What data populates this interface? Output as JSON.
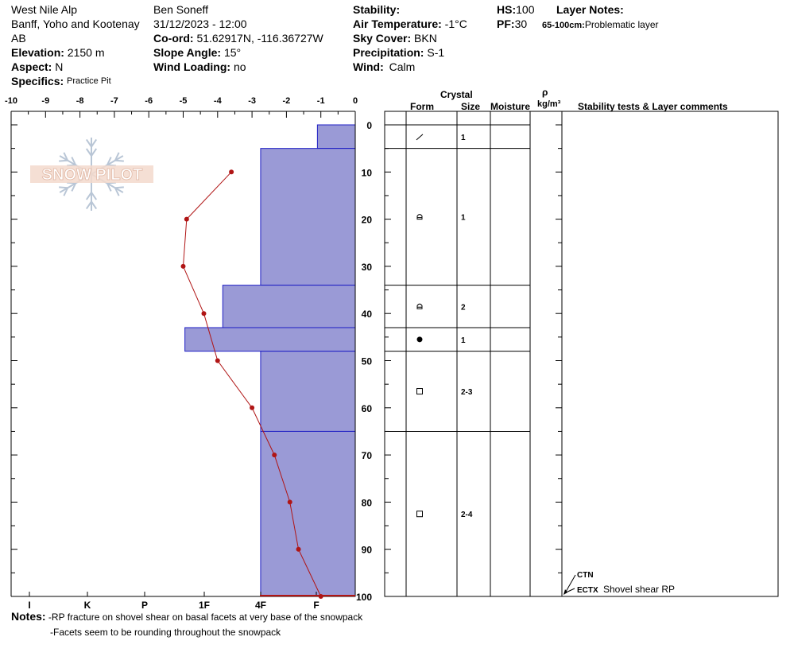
{
  "header": {
    "location": "West Nile Alp",
    "region": "Banff, Yoho and Kootenay",
    "province": "AB",
    "elevation_label": "Elevation:",
    "elevation_value": "2150 m",
    "aspect_label": "Aspect:",
    "aspect_value": "N",
    "specifics_label": "Specifics:",
    "specifics_value": "Practice Pit",
    "observer": "Ben Soneff",
    "datetime": "31/12/2023 - 12:00",
    "coord_label": "Co-ord:",
    "coord_value": "51.62917N, -116.36727W",
    "slope_label": "Slope Angle:",
    "slope_value": "15°",
    "wind_loading_label": "Wind Loading:",
    "wind_loading_value": "no",
    "stability_label": "Stability:",
    "stability_value": "",
    "air_temp_label": "Air Temperature:",
    "air_temp_value": "-1°C",
    "sky_label": "Sky Cover:",
    "sky_value": "BKN",
    "precip_label": "Precipitation:",
    "precip_value": "S-1",
    "wind_label": "Wind:",
    "wind_value": "Calm",
    "hs_label": "HS:",
    "hs_value": "100",
    "pf_label": "PF:",
    "pf_value": "30",
    "layer_notes_label": "Layer Notes:",
    "layer_note_range": "65-100cm:",
    "layer_note_text": "Problematic layer"
  },
  "logo": {
    "text": "SNOW PILOT"
  },
  "table_headers": {
    "crystal": "Crystal",
    "form": "Form",
    "size": "Size",
    "moisture": "Moisture",
    "rho": "ρ",
    "density_unit": "kg/m³",
    "comments": "Stability tests & Layer comments"
  },
  "layers": [
    {
      "top": 0,
      "bottom": 5,
      "form_icon": "decomposing-fragments-icon",
      "size": "1"
    },
    {
      "top": 5,
      "bottom": 34,
      "form_icon": "rounded-faceted-icon",
      "size": "1"
    },
    {
      "top": 34,
      "bottom": 43,
      "form_icon": "rounded-faceted-icon",
      "size": "2"
    },
    {
      "top": 43,
      "bottom": 48,
      "form_icon": "melt-forms-icon",
      "size": "1"
    },
    {
      "top": 48,
      "bottom": 65,
      "form_icon": "faceted-crystals-icon",
      "size": "2-3"
    },
    {
      "top": 65,
      "bottom": 100,
      "form_icon": "faceted-crystals-icon",
      "size": "2-4"
    }
  ],
  "stability_tests": [
    {
      "code": "CTN",
      "comment": ""
    },
    {
      "code": "ECTX",
      "comment": "Shovel shear RP"
    }
  ],
  "notes": {
    "label": "Notes:",
    "line1": "-RP fracture on shovel shear on basal facets at very base of the snowpack",
    "line2": "-Facets seem to be rounding throughout the snowpack"
  },
  "chart_data": {
    "type": "snow_profile",
    "temperature_axis": {
      "label": "",
      "ticks": [
        -10,
        -9,
        -8,
        -7,
        -6,
        -5,
        -4,
        -3,
        -2,
        -1,
        0
      ],
      "range": [
        -10,
        0
      ]
    },
    "depth_axis": {
      "ticks": [
        0,
        10,
        20,
        30,
        40,
        50,
        60,
        70,
        80,
        90,
        100
      ],
      "range": [
        0,
        100
      ]
    },
    "hardness_axis": {
      "ticks": [
        "I",
        "K",
        "P",
        "1F",
        "4F",
        "F"
      ]
    },
    "hardness_profile": [
      {
        "top": 0,
        "bottom": 5,
        "temp_equiv": -1.1
      },
      {
        "top": 5,
        "bottom": 34,
        "temp_equiv": -2.75
      },
      {
        "top": 34,
        "bottom": 43,
        "temp_equiv": -3.85
      },
      {
        "top": 43,
        "bottom": 48,
        "temp_equiv": -4.95
      },
      {
        "top": 48,
        "bottom": 65,
        "temp_equiv": -2.75
      },
      {
        "top": 65,
        "bottom": 100,
        "temp_equiv": -2.75
      }
    ],
    "temperature_profile": [
      {
        "depth": 10,
        "temp": -3.6
      },
      {
        "depth": 20,
        "temp": -4.9
      },
      {
        "depth": 30,
        "temp": -5.0
      },
      {
        "depth": 40,
        "temp": -4.4
      },
      {
        "depth": 50,
        "temp": -4.0
      },
      {
        "depth": 60,
        "temp": -3.0
      },
      {
        "depth": 70,
        "temp": -2.35
      },
      {
        "depth": 80,
        "temp": -1.9
      },
      {
        "depth": 90,
        "temp": -1.65
      },
      {
        "depth": 100,
        "temp": -1.0
      }
    ],
    "colors": {
      "hardness_fill": "#9a9ad6",
      "hardness_stroke": "#1f1fc4",
      "temp_line": "#b01515",
      "grid": "#000000"
    }
  }
}
